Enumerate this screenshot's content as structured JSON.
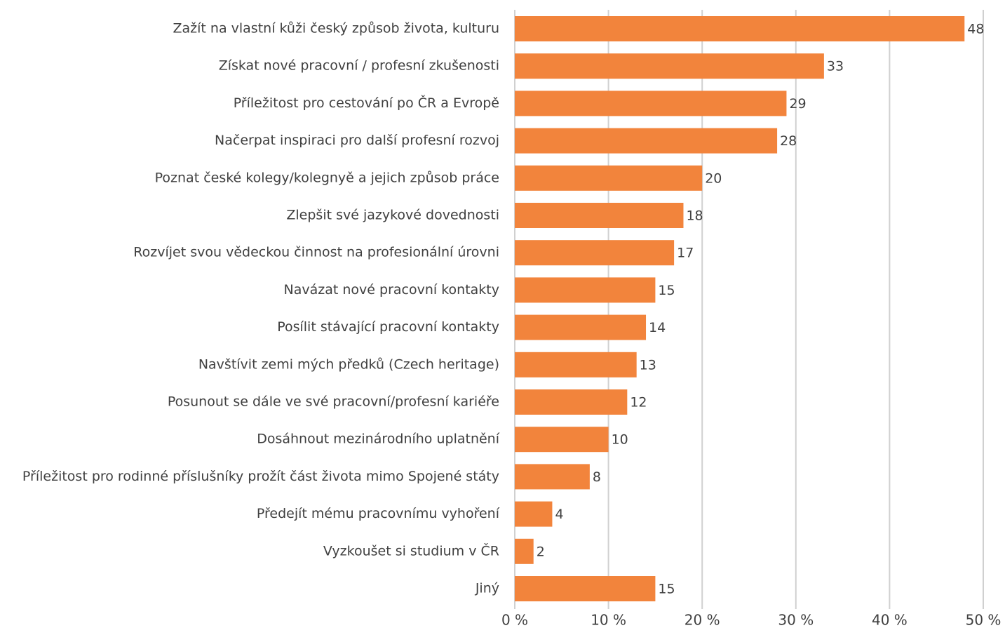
{
  "chart_data": {
    "type": "barh",
    "categories": [
      "Zažít na vlastní kůži český způsob života, kulturu",
      "Získat nové pracovní / profesní zkušenosti",
      "Příležitost pro cestování po ČR a Evropě",
      "Načerpat inspiraci pro další profesní rozvoj",
      "Poznat české kolegy/kolegnyě a jejich způsob práce",
      "Zlepšit své jazykové dovednosti",
      "Rozvíjet svou vědeckou činnost na profesionální úrovni",
      "Navázat nové pracovní kontakty",
      "Posílit stávající pracovní kontakty",
      "Navštívit zemi mých předků (Czech heritage)",
      "Posunout se dále ve své pracovní/profesní kariéře",
      "Dosáhnout mezinárodního uplatnění",
      "Příležitost pro rodinné příslušníky prožít část života mimo Spojené státy",
      "Předejít mému pracovnímu vyhoření",
      "Vyzkoušet si studium v ČR",
      "Jiný"
    ],
    "values": [
      48,
      33,
      29,
      28,
      20,
      18,
      17,
      15,
      14,
      13,
      12,
      10,
      8,
      4,
      2,
      15
    ],
    "color": "#f2843c",
    "xlim": [
      0,
      50
    ],
    "xticks": [
      {
        "value": 0,
        "label": "0 %"
      },
      {
        "value": 10,
        "label": "10 %"
      },
      {
        "value": 20,
        "label": "20 %"
      },
      {
        "value": 30,
        "label": "30 %"
      },
      {
        "value": 40,
        "label": "40 %"
      },
      {
        "value": 50,
        "label": "50 %"
      }
    ],
    "grid": true
  }
}
